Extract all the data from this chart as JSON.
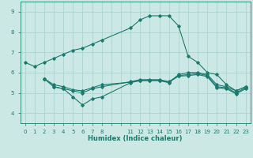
{
  "xlabel": "Humidex (Indice chaleur)",
  "bg_color": "#cce8e4",
  "grid_color": "#aad4d0",
  "line_color": "#1a7a6e",
  "tick_labels": [
    "0",
    "1",
    "2",
    "3",
    "4",
    "5",
    "6",
    "7",
    "8",
    "",
    "",
    "11",
    "12",
    "13",
    "14",
    "15",
    "16",
    "17",
    "18",
    "19",
    "20",
    "21",
    "22",
    "23"
  ],
  "ylim": [
    3.5,
    9.5
  ],
  "yticks": [
    4,
    5,
    6,
    7,
    8,
    9
  ],
  "series": [
    {
      "idx": [
        0,
        1,
        2,
        3,
        4,
        5,
        6,
        7,
        8,
        11,
        12,
        13,
        14,
        15,
        16,
        17,
        18,
        19,
        20,
        21,
        22,
        23
      ],
      "y": [
        6.5,
        6.3,
        6.5,
        6.7,
        6.9,
        7.1,
        7.2,
        7.4,
        7.6,
        8.2,
        8.6,
        8.8,
        8.8,
        8.8,
        8.3,
        6.8,
        6.5,
        6.0,
        5.9,
        5.4,
        5.1,
        5.3
      ]
    },
    {
      "idx": [
        2,
        3,
        4,
        5,
        6,
        7,
        8,
        11,
        12,
        13,
        14,
        15,
        16,
        17,
        18,
        19,
        20,
        21,
        22,
        23
      ],
      "y": [
        5.7,
        5.3,
        5.2,
        4.8,
        4.4,
        4.7,
        4.8,
        5.5,
        5.6,
        5.6,
        5.6,
        5.5,
        5.9,
        6.0,
        6.0,
        5.9,
        5.4,
        5.3,
        5.1,
        5.3
      ]
    },
    {
      "idx": [
        2,
        3,
        4,
        5,
        6,
        7,
        8,
        11,
        12,
        13,
        14,
        15,
        16,
        17,
        18,
        19,
        20,
        21,
        22,
        23
      ],
      "y": [
        5.7,
        5.3,
        5.2,
        5.1,
        5.0,
        5.2,
        5.3,
        5.55,
        5.65,
        5.65,
        5.65,
        5.55,
        5.85,
        5.9,
        5.95,
        5.85,
        5.3,
        5.25,
        5.0,
        5.25
      ]
    },
    {
      "idx": [
        2,
        3,
        4,
        5,
        6,
        7,
        8,
        11,
        12,
        13,
        14,
        15,
        16,
        17,
        18,
        19,
        20,
        21,
        22,
        23
      ],
      "y": [
        5.7,
        5.4,
        5.3,
        5.15,
        5.1,
        5.25,
        5.4,
        5.52,
        5.62,
        5.62,
        5.62,
        5.52,
        5.82,
        5.85,
        5.9,
        5.8,
        5.25,
        5.2,
        4.95,
        5.2
      ]
    }
  ]
}
